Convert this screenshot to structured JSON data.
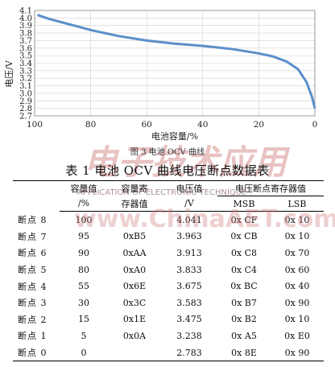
{
  "chart_data": {
    "type": "line",
    "xlabel": "电池容量/%",
    "ylabel": "电压/V",
    "xlim": [
      100,
      0
    ],
    "ylim": [
      2.7,
      4.1
    ],
    "x_ticks": [
      "100",
      "80",
      "60",
      "40",
      "20",
      "0"
    ],
    "y_ticks": [
      "4.1",
      "4.0",
      "3.9",
      "3.8",
      "3.7",
      "3.6",
      "3.5",
      "3.4",
      "3.3",
      "3.2",
      "3.1",
      "3.0",
      "2.9",
      "2.8",
      "2.7"
    ],
    "grid": true,
    "line_color": "#5b8fc8",
    "points": [
      {
        "x": 99,
        "y": 4.04
      },
      {
        "x": 95,
        "y": 3.99
      },
      {
        "x": 90,
        "y": 3.94
      },
      {
        "x": 85,
        "y": 3.89
      },
      {
        "x": 80,
        "y": 3.84
      },
      {
        "x": 70,
        "y": 3.76
      },
      {
        "x": 60,
        "y": 3.7
      },
      {
        "x": 50,
        "y": 3.66
      },
      {
        "x": 40,
        "y": 3.63
      },
      {
        "x": 30,
        "y": 3.59
      },
      {
        "x": 20,
        "y": 3.53
      },
      {
        "x": 15,
        "y": 3.49
      },
      {
        "x": 10,
        "y": 3.42
      },
      {
        "x": 6,
        "y": 3.32
      },
      {
        "x": 3,
        "y": 3.15
      },
      {
        "x": 1,
        "y": 2.95
      },
      {
        "x": 0,
        "y": 2.8
      }
    ]
  },
  "figure_caption": "图 3   电池 OCV 曲线",
  "table_title": "表 1   电池 OCV 曲线电压断点数据表",
  "table": {
    "headers": {
      "capacity": "容量值",
      "capacity_unit": "/%",
      "register": "容量寄",
      "register_2": "存器值",
      "voltage": "电压值",
      "voltage_unit": "/V",
      "voltage_register": "电压断点寄存器值",
      "msb": "MSB",
      "lsb": "LSB"
    },
    "rows": [
      {
        "label": "断点 8",
        "capacity": "100",
        "register": "",
        "voltage": "4.041",
        "msb": "0x  CF",
        "lsb": "0x  10"
      },
      {
        "label": "断点 7",
        "capacity": "95",
        "register": "0xB5",
        "voltage": "3.963",
        "msb": "0x  CB",
        "lsb": "0x  10"
      },
      {
        "label": "断点 6",
        "capacity": "90",
        "register": "0xAA",
        "voltage": "3.913",
        "msb": "0x  C8",
        "lsb": "0x  70"
      },
      {
        "label": "断点 5",
        "capacity": "80",
        "register": "0xA0",
        "voltage": "3.833",
        "msb": "0x  C4",
        "lsb": "0x  60"
      },
      {
        "label": "断点 4",
        "capacity": "55",
        "register": "0x6E",
        "voltage": "3.675",
        "msb": "0x  BC",
        "lsb": "0x  40"
      },
      {
        "label": "断点 3",
        "capacity": "30",
        "register": "0x3C",
        "voltage": "3.583",
        "msb": "0x  B7",
        "lsb": "0x  90"
      },
      {
        "label": "断点 2",
        "capacity": "15",
        "register": "0x1E",
        "voltage": "3.475",
        "msb": "0x  B2",
        "lsb": "0x  10"
      },
      {
        "label": "断点 1",
        "capacity": "5",
        "register": "0x0A",
        "voltage": "3.238",
        "msb": "0x  A5",
        "lsb": "0x  E0"
      },
      {
        "label": "断点 0",
        "capacity": "0",
        "register": "",
        "voltage": "2.783",
        "msb": "0x  8E",
        "lsb": "0x  90"
      }
    ]
  },
  "watermark": {
    "logo": "电子技术应用",
    "subtitle": "APPLICATION OF ELECTRONIC TECHNIQUE",
    "site": "www.ChinaAET.com"
  }
}
